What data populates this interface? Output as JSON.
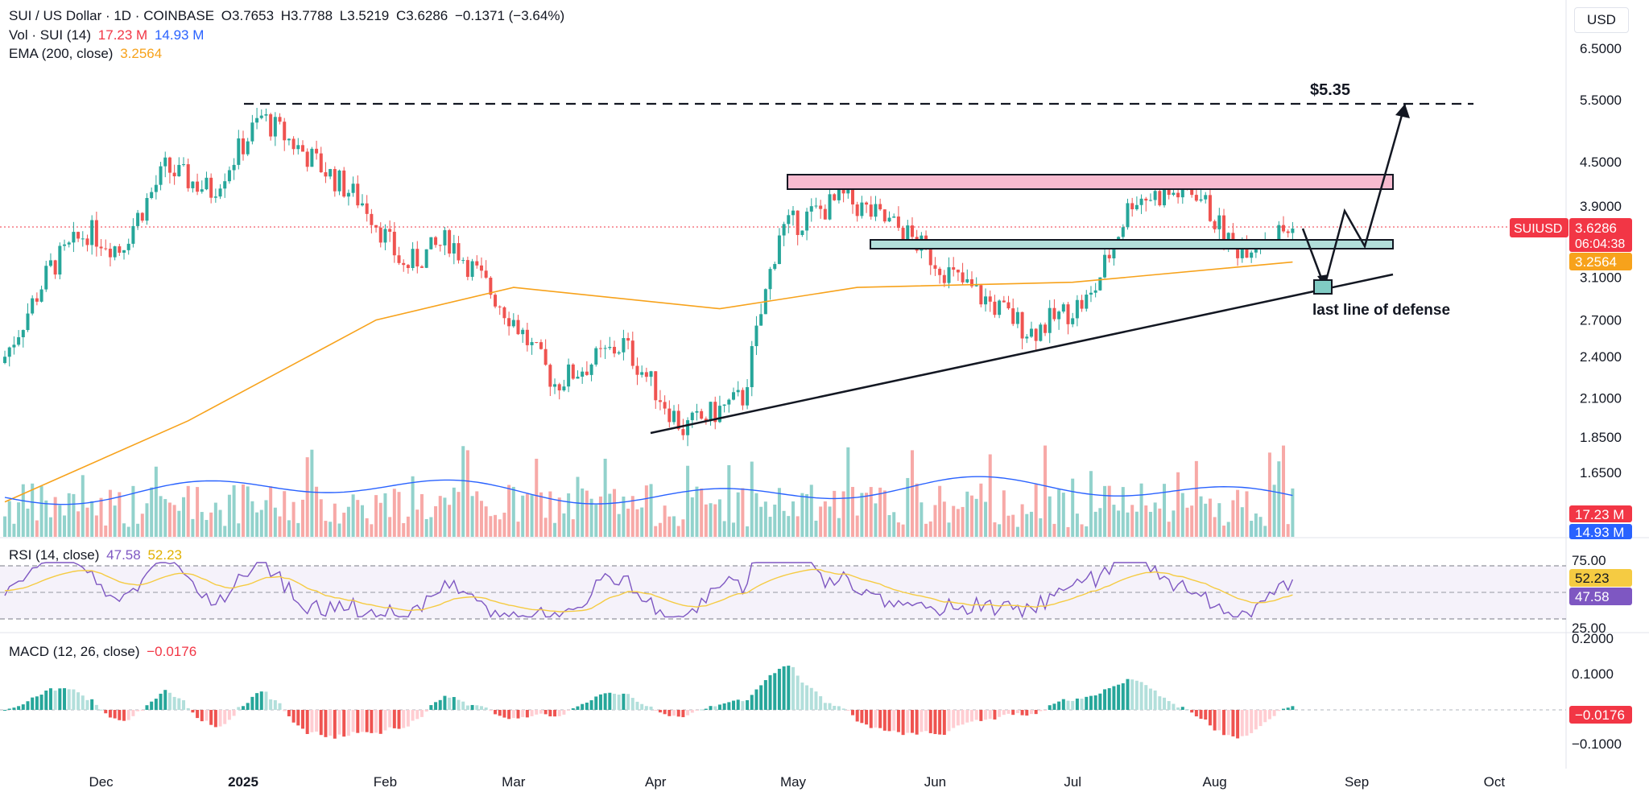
{
  "header": {
    "symbol": "SUI / US Dollar · 1D · COINBASE",
    "o_label": "O",
    "o_value": "3.7653",
    "h_label": "H",
    "h_value": "3.7788",
    "l_label": "L",
    "l_value": "3.5219",
    "c_label": "C",
    "c_value": "3.6286",
    "change": "−0.1371 (−3.64%)"
  },
  "volume_legend": {
    "label": "Vol · SUI (14)",
    "vol": "17.23 M",
    "ma": "14.93 M"
  },
  "ema_legend": {
    "label": "EMA (200, close)",
    "value": "3.2564"
  },
  "rsi_legend": {
    "label": "RSI (14, close)",
    "rsi": "47.58",
    "ma": "52.23"
  },
  "macd_legend": {
    "label": "MACD (12, 26, close)",
    "value": "−0.0176"
  },
  "currency_button": "USD",
  "annotations": {
    "target": "$5.35",
    "support": "last line of defense"
  },
  "badges": {
    "symbol": "SUIUSD",
    "price": "3.6286",
    "countdown": "06:04:38",
    "ema": "3.2564",
    "volume": "17.23 M",
    "volume_ma": "14.93 M",
    "rsi_ma": "52.23",
    "rsi": "47.58",
    "macd": "−0.0176"
  },
  "colors": {
    "up": "#26a69a",
    "down": "#ef5350",
    "ema": "#f7a21b",
    "vol_ma": "#2962ff",
    "rsi": "#7e57c2",
    "rsi_ma": "#f5cb42",
    "resistance_zone": "#f8bbd0",
    "support_zone": "#b2dfdb",
    "price_line": "#f23645"
  },
  "chart_data": [
    {
      "type": "candlestick",
      "title": "SUI / US Dollar · 1D · COINBASE",
      "y_scale": "log",
      "ylim": [
        1.55,
        6.8
      ],
      "y_ticks": [
        "6.5000",
        "5.5000",
        "4.5000",
        "3.9000",
        "3.1000",
        "2.7000",
        "2.4000",
        "2.1000",
        "1.8500",
        "1.6500"
      ],
      "x_ticks": [
        "Dec",
        "2025",
        "Feb",
        "Mar",
        "Apr",
        "May",
        "Jun",
        "Jul",
        "Aug",
        "Sep",
        "Oct"
      ],
      "approx_close_path": [
        {
          "date": "2024-11-10",
          "close": 2.4
        },
        {
          "date": "2024-11-20",
          "close": 3.2
        },
        {
          "date": "2024-11-28",
          "close": 3.6
        },
        {
          "date": "2024-12-05",
          "close": 3.4
        },
        {
          "date": "2024-12-15",
          "close": 4.4
        },
        {
          "date": "2024-12-25",
          "close": 4.1
        },
        {
          "date": "2025-01-05",
          "close": 5.2
        },
        {
          "date": "2025-01-15",
          "close": 4.6
        },
        {
          "date": "2025-01-28",
          "close": 3.9
        },
        {
          "date": "2025-02-05",
          "close": 3.2
        },
        {
          "date": "2025-02-15",
          "close": 3.5
        },
        {
          "date": "2025-03-01",
          "close": 2.7
        },
        {
          "date": "2025-03-10",
          "close": 2.2
        },
        {
          "date": "2025-03-25",
          "close": 2.5
        },
        {
          "date": "2025-04-07",
          "close": 1.9
        },
        {
          "date": "2025-04-20",
          "close": 2.1
        },
        {
          "date": "2025-04-28",
          "close": 3.6
        },
        {
          "date": "2025-05-12",
          "close": 4.0
        },
        {
          "date": "2025-05-25",
          "close": 3.6
        },
        {
          "date": "2025-06-05",
          "close": 3.1
        },
        {
          "date": "2025-06-22",
          "close": 2.6
        },
        {
          "date": "2025-07-05",
          "close": 2.9
        },
        {
          "date": "2025-07-14",
          "close": 4.0
        },
        {
          "date": "2025-07-28",
          "close": 4.1
        },
        {
          "date": "2025-08-05",
          "close": 3.4
        },
        {
          "date": "2025-08-18",
          "close": 3.6286
        }
      ],
      "ema200_path": [
        {
          "date": "2024-11-10",
          "value": 1.5
        },
        {
          "date": "2024-12-20",
          "value": 1.95
        },
        {
          "date": "2025-01-30",
          "value": 2.7
        },
        {
          "date": "2025-03-01",
          "value": 3.0
        },
        {
          "date": "2025-04-15",
          "value": 2.8
        },
        {
          "date": "2025-05-15",
          "value": 3.0
        },
        {
          "date": "2025-07-01",
          "value": 3.05
        },
        {
          "date": "2025-08-18",
          "value": 3.2564
        }
      ],
      "levels": {
        "target": 5.35,
        "resistance_zone": [
          4.06,
          4.26
        ],
        "support_zone": [
          3.45,
          3.53
        ]
      }
    },
    {
      "type": "bar",
      "title": "Vol · SUI (14)",
      "last_volume": "17.23 M",
      "volume_ma": "14.93 M"
    },
    {
      "type": "line",
      "title": "RSI (14, close)",
      "ylim": [
        20,
        80
      ],
      "y_ticks": [
        "75.00",
        "25.00"
      ],
      "series": [
        {
          "name": "RSI",
          "last": 47.58
        },
        {
          "name": "RSI MA",
          "last": 52.23
        }
      ]
    },
    {
      "type": "bar",
      "title": "MACD (12, 26, close)",
      "y_ticks": [
        "0.2000",
        "0.1000",
        "−0.1000"
      ],
      "last": -0.0176
    }
  ]
}
